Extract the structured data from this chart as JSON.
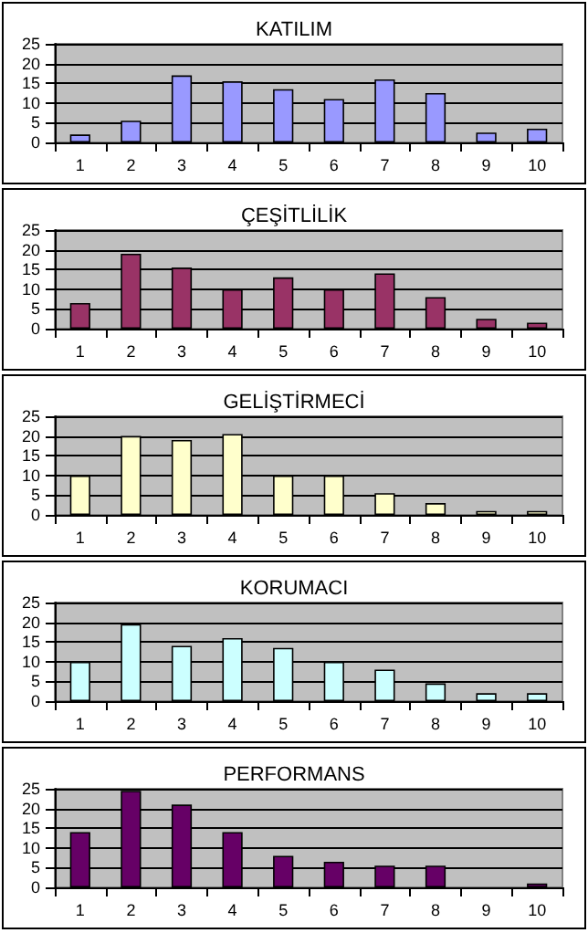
{
  "chart_data": [
    {
      "type": "bar",
      "title": "KATILIM",
      "categories": [
        "1",
        "2",
        "3",
        "4",
        "5",
        "6",
        "7",
        "8",
        "9",
        "10"
      ],
      "values": [
        2,
        5.5,
        17,
        15.5,
        13.5,
        11,
        16,
        12.5,
        2.5,
        3.5
      ],
      "color": "#9999ff",
      "ylim": [
        0,
        25
      ],
      "yticks": [
        0,
        5,
        10,
        15,
        20,
        25
      ],
      "grid": "y"
    },
    {
      "type": "bar",
      "title": "ÇEŞİTLİLİK",
      "categories": [
        "1",
        "2",
        "3",
        "4",
        "5",
        "6",
        "7",
        "8",
        "9",
        "10"
      ],
      "values": [
        6.5,
        19,
        15.5,
        10,
        13,
        10,
        14,
        8,
        2.5,
        1.5
      ],
      "color": "#993366",
      "ylim": [
        0,
        25
      ],
      "yticks": [
        0,
        5,
        10,
        15,
        20,
        25
      ],
      "grid": "y"
    },
    {
      "type": "bar",
      "title": "GELİŞTİRMECİ",
      "categories": [
        "1",
        "2",
        "3",
        "4",
        "5",
        "6",
        "7",
        "8",
        "9",
        "10"
      ],
      "values": [
        10,
        20,
        19,
        20.5,
        10,
        10,
        5.5,
        3,
        1,
        1
      ],
      "color": "#ffffcc",
      "ylim": [
        0,
        25
      ],
      "yticks": [
        0,
        5,
        10,
        15,
        20,
        25
      ],
      "grid": "y"
    },
    {
      "type": "bar",
      "title": "KORUMACI",
      "categories": [
        "1",
        "2",
        "3",
        "4",
        "5",
        "6",
        "7",
        "8",
        "9",
        "10"
      ],
      "values": [
        10,
        19.5,
        14,
        16,
        13.5,
        10,
        8,
        4.5,
        2,
        2
      ],
      "color": "#ccffff",
      "ylim": [
        0,
        25
      ],
      "yticks": [
        0,
        5,
        10,
        15,
        20,
        25
      ],
      "grid": "y"
    },
    {
      "type": "bar",
      "title": "PERFORMANS",
      "categories": [
        "1",
        "2",
        "3",
        "4",
        "5",
        "6",
        "7",
        "8",
        "9",
        "10"
      ],
      "values": [
        14,
        24.5,
        21,
        14,
        8,
        6.5,
        5.5,
        5.5,
        null,
        1
      ],
      "color": "#660066",
      "ylim": [
        0,
        25
      ],
      "yticks": [
        0,
        5,
        10,
        15,
        20,
        25
      ],
      "grid": "y"
    }
  ]
}
